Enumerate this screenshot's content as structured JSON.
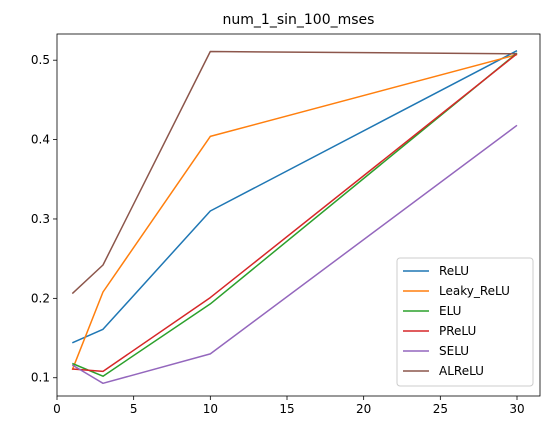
{
  "chart_data": {
    "type": "line",
    "title": "num_1_sin_100_mses",
    "xlabel": "",
    "ylabel": "",
    "x": [
      1,
      3,
      10,
      30
    ],
    "xlim": [
      0,
      31.5
    ],
    "ylim": [
      0.077,
      0.533
    ],
    "xticks": [
      0,
      5,
      10,
      15,
      20,
      25,
      30
    ],
    "xtick_labels": [
      "0",
      "5",
      "10",
      "15",
      "20",
      "25",
      "30"
    ],
    "yticks": [
      0.1,
      0.2,
      0.3,
      0.4,
      0.5
    ],
    "ytick_labels": [
      "0.1",
      "0.2",
      "0.3",
      "0.4",
      "0.5"
    ],
    "grid": false,
    "legend_position": "lower right",
    "series": [
      {
        "name": "ReLU",
        "color": "#1f77b4",
        "values": [
          0.144,
          0.161,
          0.31,
          0.512
        ]
      },
      {
        "name": "Leaky_ReLU",
        "color": "#ff7f0e",
        "values": [
          0.11,
          0.208,
          0.404,
          0.507
        ]
      },
      {
        "name": "ELU",
        "color": "#2ca02c",
        "values": [
          0.118,
          0.102,
          0.193,
          0.509
        ]
      },
      {
        "name": "PReLU",
        "color": "#d62728",
        "values": [
          0.111,
          0.108,
          0.201,
          0.508
        ]
      },
      {
        "name": "SELU",
        "color": "#9467bd",
        "values": [
          0.116,
          0.093,
          0.13,
          0.418
        ]
      },
      {
        "name": "ALReLU",
        "color": "#8c564b",
        "values": [
          0.206,
          0.242,
          0.511,
          0.508
        ]
      }
    ]
  }
}
